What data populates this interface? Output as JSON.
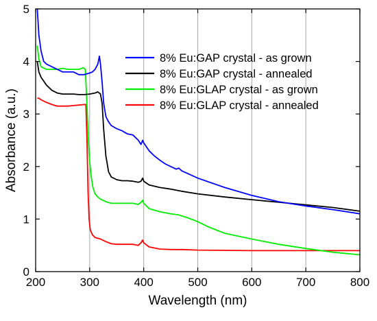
{
  "chart_data": {
    "type": "line",
    "xlabel": "Wavelength (nm)",
    "ylabel": "Absorbance (a.u.)",
    "xlim": [
      200,
      800
    ],
    "ylim": [
      0,
      5
    ],
    "xticks": [
      "200",
      "300",
      "400",
      "500",
      "600",
      "700",
      "800"
    ],
    "yticks": [
      "0",
      "1",
      "2",
      "3",
      "4",
      "5"
    ],
    "grid": "vertical",
    "legend_position": "top-right",
    "series": [
      {
        "name": "8% Eu:GAP crystal - as grown",
        "color": "#0000ff",
        "points": [
          [
            203,
            5.0
          ],
          [
            206,
            4.5
          ],
          [
            210,
            4.2
          ],
          [
            215,
            4.0
          ],
          [
            220,
            3.95
          ],
          [
            230,
            3.9
          ],
          [
            240,
            3.85
          ],
          [
            250,
            3.8
          ],
          [
            260,
            3.8
          ],
          [
            270,
            3.8
          ],
          [
            280,
            3.75
          ],
          [
            290,
            3.75
          ],
          [
            300,
            3.78
          ],
          [
            305,
            3.8
          ],
          [
            310,
            3.85
          ],
          [
            315,
            3.95
          ],
          [
            318,
            4.1
          ],
          [
            320,
            3.95
          ],
          [
            323,
            3.6
          ],
          [
            326,
            3.2
          ],
          [
            330,
            2.95
          ],
          [
            335,
            2.85
          ],
          [
            340,
            2.78
          ],
          [
            350,
            2.72
          ],
          [
            360,
            2.68
          ],
          [
            370,
            2.62
          ],
          [
            380,
            2.6
          ],
          [
            390,
            2.5
          ],
          [
            395,
            2.42
          ],
          [
            398,
            2.5
          ],
          [
            400,
            2.45
          ],
          [
            410,
            2.3
          ],
          [
            420,
            2.2
          ],
          [
            430,
            2.12
          ],
          [
            440,
            2.05
          ],
          [
            450,
            2.0
          ],
          [
            460,
            1.95
          ],
          [
            465,
            1.97
          ],
          [
            470,
            1.92
          ],
          [
            500,
            1.78
          ],
          [
            550,
            1.6
          ],
          [
            600,
            1.45
          ],
          [
            650,
            1.33
          ],
          [
            700,
            1.25
          ],
          [
            750,
            1.18
          ],
          [
            800,
            1.1
          ]
        ]
      },
      {
        "name": "8% Eu:GAP crystal - annealed",
        "color": "#000000",
        "points": [
          [
            203,
            4.0
          ],
          [
            206,
            3.8
          ],
          [
            210,
            3.7
          ],
          [
            220,
            3.55
          ],
          [
            230,
            3.45
          ],
          [
            240,
            3.4
          ],
          [
            250,
            3.38
          ],
          [
            260,
            3.38
          ],
          [
            270,
            3.38
          ],
          [
            280,
            3.37
          ],
          [
            290,
            3.37
          ],
          [
            300,
            3.38
          ],
          [
            310,
            3.4
          ],
          [
            315,
            3.42
          ],
          [
            320,
            3.38
          ],
          [
            323,
            3.2
          ],
          [
            326,
            2.7
          ],
          [
            330,
            2.2
          ],
          [
            335,
            1.9
          ],
          [
            340,
            1.8
          ],
          [
            350,
            1.75
          ],
          [
            360,
            1.73
          ],
          [
            370,
            1.73
          ],
          [
            380,
            1.72
          ],
          [
            390,
            1.7
          ],
          [
            395,
            1.72
          ],
          [
            398,
            1.78
          ],
          [
            400,
            1.72
          ],
          [
            410,
            1.65
          ],
          [
            430,
            1.6
          ],
          [
            450,
            1.57
          ],
          [
            465,
            1.54
          ],
          [
            470,
            1.53
          ],
          [
            500,
            1.48
          ],
          [
            550,
            1.42
          ],
          [
            600,
            1.37
          ],
          [
            650,
            1.32
          ],
          [
            700,
            1.27
          ],
          [
            750,
            1.22
          ],
          [
            800,
            1.15
          ]
        ]
      },
      {
        "name": "8% Eu:GLAP crystal - as grown",
        "color": "#00ee00",
        "points": [
          [
            203,
            4.3
          ],
          [
            206,
            4.05
          ],
          [
            210,
            3.9
          ],
          [
            220,
            3.85
          ],
          [
            230,
            3.85
          ],
          [
            240,
            3.85
          ],
          [
            250,
            3.87
          ],
          [
            260,
            3.85
          ],
          [
            270,
            3.85
          ],
          [
            280,
            3.85
          ],
          [
            288,
            3.88
          ],
          [
            292,
            3.85
          ],
          [
            294,
            3.4
          ],
          [
            296,
            2.9
          ],
          [
            298,
            2.4
          ],
          [
            300,
            2.1
          ],
          [
            303,
            1.8
          ],
          [
            306,
            1.6
          ],
          [
            310,
            1.48
          ],
          [
            315,
            1.42
          ],
          [
            320,
            1.38
          ],
          [
            330,
            1.33
          ],
          [
            340,
            1.3
          ],
          [
            350,
            1.3
          ],
          [
            360,
            1.3
          ],
          [
            370,
            1.3
          ],
          [
            380,
            1.3
          ],
          [
            390,
            1.28
          ],
          [
            395,
            1.32
          ],
          [
            398,
            1.36
          ],
          [
            400,
            1.3
          ],
          [
            410,
            1.2
          ],
          [
            430,
            1.14
          ],
          [
            450,
            1.1
          ],
          [
            465,
            1.08
          ],
          [
            470,
            1.06
          ],
          [
            480,
            1.03
          ],
          [
            500,
            0.95
          ],
          [
            520,
            0.85
          ],
          [
            550,
            0.73
          ],
          [
            600,
            0.62
          ],
          [
            650,
            0.52
          ],
          [
            700,
            0.44
          ],
          [
            750,
            0.37
          ],
          [
            800,
            0.32
          ]
        ]
      },
      {
        "name": "8% Eu:GLAP crystal - annealed",
        "color": "#ff0000",
        "points": [
          [
            203,
            3.3
          ],
          [
            206,
            3.3
          ],
          [
            210,
            3.27
          ],
          [
            220,
            3.22
          ],
          [
            230,
            3.18
          ],
          [
            240,
            3.15
          ],
          [
            250,
            3.15
          ],
          [
            260,
            3.15
          ],
          [
            270,
            3.16
          ],
          [
            280,
            3.17
          ],
          [
            290,
            3.18
          ],
          [
            293,
            3.18
          ],
          [
            295,
            2.5
          ],
          [
            297,
            1.5
          ],
          [
            299,
            1.0
          ],
          [
            301,
            0.8
          ],
          [
            305,
            0.7
          ],
          [
            310,
            0.65
          ],
          [
            320,
            0.62
          ],
          [
            330,
            0.57
          ],
          [
            340,
            0.53
          ],
          [
            350,
            0.52
          ],
          [
            360,
            0.52
          ],
          [
            370,
            0.52
          ],
          [
            380,
            0.52
          ],
          [
            390,
            0.5
          ],
          [
            395,
            0.55
          ],
          [
            398,
            0.6
          ],
          [
            400,
            0.55
          ],
          [
            410,
            0.47
          ],
          [
            430,
            0.43
          ],
          [
            450,
            0.42
          ],
          [
            470,
            0.42
          ],
          [
            500,
            0.41
          ],
          [
            600,
            0.4
          ],
          [
            700,
            0.4
          ],
          [
            800,
            0.4
          ]
        ]
      }
    ]
  }
}
